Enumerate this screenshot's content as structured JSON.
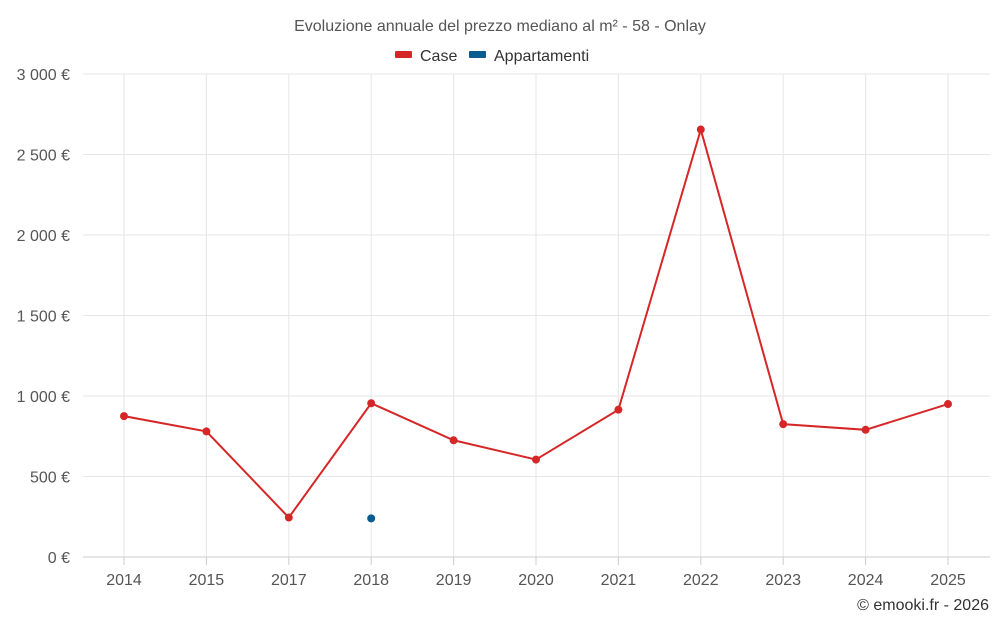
{
  "chart_data": {
    "type": "line",
    "title": "Evoluzione annuale del prezzo mediano al m² - 58 - Onlay",
    "categories": [
      "2014",
      "2015",
      "2017",
      "2018",
      "2019",
      "2020",
      "2021",
      "2022",
      "2023",
      "2024",
      "2025"
    ],
    "series": [
      {
        "name": "Case",
        "color": "#d62728",
        "values": [
          875,
          780,
          245,
          955,
          725,
          605,
          915,
          2655,
          825,
          790,
          950
        ]
      },
      {
        "name": "Appartamenti",
        "color": "#0a5c8f",
        "values": [
          null,
          null,
          null,
          240,
          null,
          null,
          null,
          null,
          null,
          null,
          null
        ]
      }
    ],
    "y_ticks": [
      "0 €",
      "500 €",
      "1 000 €",
      "1 500 €",
      "2 000 €",
      "2 500 €",
      "3 000 €"
    ],
    "ylim": [
      0,
      3000
    ],
    "grid": true,
    "legend": "top-center",
    "credit": "© emooki.fr - 2026"
  }
}
